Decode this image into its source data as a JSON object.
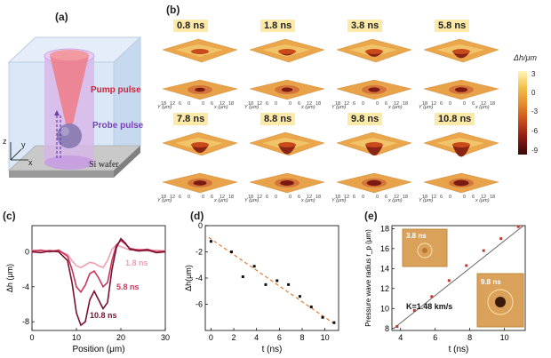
{
  "panels": {
    "a": {
      "label": "(a)",
      "pump": "Pump pulse",
      "probe": "Probe pulse",
      "substrate": "Si wafer",
      "axes": {
        "z": "z",
        "y": "y",
        "x": "x"
      }
    },
    "b": {
      "label": "(b)",
      "times": [
        "0.8 ns",
        "1.8 ns",
        "3.8 ns",
        "5.8 ns",
        "7.8 ns",
        "8.8 ns",
        "9.8 ns",
        "10.8 ns"
      ],
      "axis_y": "Y (μm)",
      "axis_x": "x (μm)",
      "axis_ticks": [
        "18",
        "12",
        "6",
        "0",
        "0",
        "6",
        "12",
        "18"
      ],
      "colorbar": {
        "title": "Δh/μm",
        "ticks": [
          "3",
          "0",
          "-3",
          "-6",
          "-9"
        ]
      }
    },
    "c": {
      "label": "(c)"
    },
    "d": {
      "label": "(d)"
    },
    "e": {
      "label": "(e)",
      "inset1": "3.8 ns",
      "inset2": "9.8 ns",
      "fit_text": "K=1.48 km/s"
    }
  },
  "chart_data": [
    {
      "type": "line",
      "panel": "c",
      "xlabel": "Position (μm)",
      "ylabel": "Δh (μm)",
      "xlim": [
        0,
        30
      ],
      "ylim": [
        -9,
        3
      ],
      "xticks": [
        0,
        10,
        20,
        30
      ],
      "yticks": [
        0,
        -4,
        -8
      ],
      "series": [
        {
          "name": "1.8 ns",
          "color": "#f0a0b0",
          "x": [
            0,
            2,
            4,
            6,
            8,
            9,
            10,
            11,
            12,
            13,
            14,
            15,
            16,
            17,
            18,
            19,
            20,
            21,
            22,
            24,
            26,
            28,
            30
          ],
          "y": [
            0.2,
            0.1,
            0.2,
            0.1,
            -0.3,
            -1.0,
            -1.6,
            -1.8,
            -1.5,
            -1.2,
            -1.3,
            -1.6,
            -1.8,
            -1.0,
            0.3,
            0.8,
            0.6,
            0.4,
            0.2,
            0.3,
            0.1,
            0.2,
            0.1
          ]
        },
        {
          "name": "5.8 ns",
          "color": "#c8375a",
          "x": [
            0,
            2,
            4,
            6,
            8,
            9,
            10,
            11,
            12,
            13,
            14,
            15,
            16,
            17,
            18,
            19,
            20,
            21,
            22,
            24,
            26,
            28,
            30
          ],
          "y": [
            0.1,
            0.2,
            0.0,
            0.2,
            -0.5,
            -2.0,
            -4.0,
            -4.6,
            -3.8,
            -2.5,
            -2.2,
            -3.0,
            -4.0,
            -3.5,
            -1.0,
            0.8,
            1.3,
            0.9,
            0.4,
            0.2,
            0.3,
            0.0,
            0.1
          ]
        },
        {
          "name": "10.8 ns",
          "color": "#7a1030",
          "x": [
            0,
            2,
            4,
            6,
            8,
            9,
            10,
            11,
            12,
            13,
            14,
            15,
            16,
            17,
            18,
            19,
            20,
            21,
            22,
            24,
            26,
            28,
            30
          ],
          "y": [
            0.0,
            -0.1,
            0.1,
            0.0,
            -1.0,
            -3.5,
            -7.0,
            -8.4,
            -8.0,
            -5.5,
            -4.5,
            -5.5,
            -6.5,
            -5.8,
            -2.0,
            0.5,
            1.5,
            1.0,
            0.3,
            0.1,
            0.2,
            -0.1,
            0.0
          ]
        }
      ]
    },
    {
      "type": "scatter",
      "panel": "d",
      "xlabel": "t (ns)",
      "ylabel": "Δh(μm)",
      "xlim": [
        -0.5,
        11.2
      ],
      "ylim": [
        -8,
        0
      ],
      "xticks": [
        0,
        2,
        4,
        6,
        8,
        10
      ],
      "yticks": [
        0,
        -2,
        -4,
        -6
      ],
      "points": {
        "x": [
          0,
          1.8,
          2.8,
          3.8,
          4.8,
          5.8,
          6.8,
          7.8,
          8.8,
          9.8,
          10.8
        ],
        "y": [
          -1.2,
          -2.0,
          -3.9,
          -3.1,
          -4.5,
          -4.2,
          -4.5,
          -5.4,
          -6.2,
          -7.0,
          -7.4
        ]
      },
      "fit": {
        "x": [
          -0.2,
          11.0
        ],
        "y": [
          -0.9,
          -7.6
        ]
      }
    },
    {
      "type": "scatter",
      "panel": "e",
      "xlabel": "t (ns)",
      "ylabel": "Pressure wave radius r_p (μm)",
      "xlim": [
        3.5,
        11.2
      ],
      "ylim": [
        7.8,
        18.3
      ],
      "xticks": [
        4,
        6,
        8,
        10
      ],
      "yticks": [
        8,
        10,
        12,
        14,
        16,
        18
      ],
      "points": {
        "x": [
          3.8,
          4.8,
          5.8,
          6.8,
          7.8,
          8.8,
          9.8,
          10.8
        ],
        "y": [
          8.2,
          9.8,
          11.2,
          12.8,
          14.3,
          15.8,
          17.0,
          18.2
        ]
      },
      "fit": {
        "x": [
          3.6,
          11.1
        ],
        "y": [
          8.0,
          18.3
        ]
      }
    }
  ]
}
